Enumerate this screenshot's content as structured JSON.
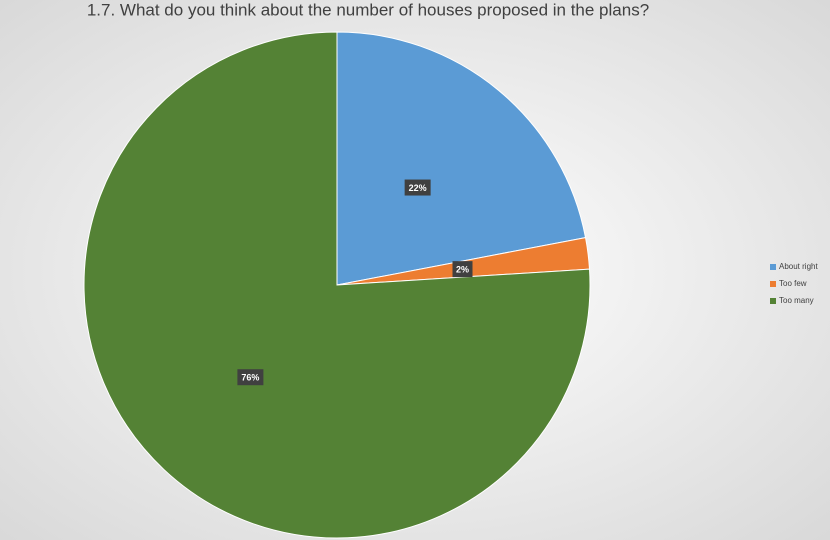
{
  "chart_data": {
    "type": "pie",
    "title": "1.7. What do you think about the number of houses proposed in the plans?",
    "categories": [
      "About right",
      "Too few",
      "Too many"
    ],
    "values": [
      22,
      2,
      76
    ],
    "value_labels": [
      "22%",
      "2%",
      "76%"
    ],
    "colors": [
      "#5b9bd5",
      "#ed7d31",
      "#548235"
    ],
    "legend": "right"
  }
}
